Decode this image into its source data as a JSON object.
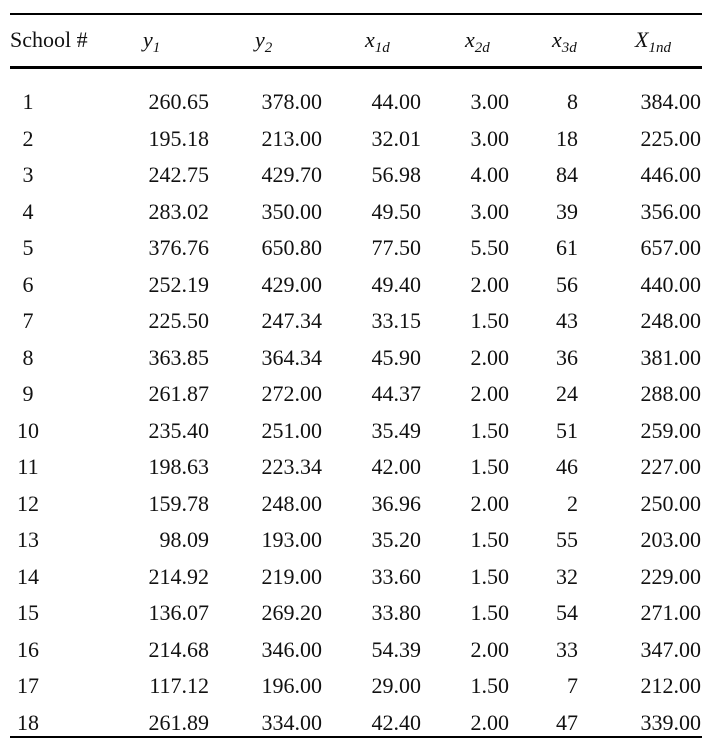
{
  "table": {
    "header": [
      {
        "main": "School #"
      },
      {
        "main": "y",
        "sub": "1"
      },
      {
        "main": "y",
        "sub": "2"
      },
      {
        "main": "x",
        "sub": "1d"
      },
      {
        "main": "x",
        "sub": "2d"
      },
      {
        "main": "x",
        "sub": "3d"
      },
      {
        "main": "X",
        "sub": "1nd"
      }
    ],
    "rows": [
      [
        "1",
        "260.65",
        "378.00",
        "44.00",
        "3.00",
        "8",
        "384.00"
      ],
      [
        "2",
        "195.18",
        "213.00",
        "32.01",
        "3.00",
        "18",
        "225.00"
      ],
      [
        "3",
        "242.75",
        "429.70",
        "56.98",
        "4.00",
        "84",
        "446.00"
      ],
      [
        "4",
        "283.02",
        "350.00",
        "49.50",
        "3.00",
        "39",
        "356.00"
      ],
      [
        "5",
        "376.76",
        "650.80",
        "77.50",
        "5.50",
        "61",
        "657.00"
      ],
      [
        "6",
        "252.19",
        "429.00",
        "49.40",
        "2.00",
        "56",
        "440.00"
      ],
      [
        "7",
        "225.50",
        "247.34",
        "33.15",
        "1.50",
        "43",
        "248.00"
      ],
      [
        "8",
        "363.85",
        "364.34",
        "45.90",
        "2.00",
        "36",
        "381.00"
      ],
      [
        "9",
        "261.87",
        "272.00",
        "44.37",
        "2.00",
        "24",
        "288.00"
      ],
      [
        "10",
        "235.40",
        "251.00",
        "35.49",
        "1.50",
        "51",
        "259.00"
      ],
      [
        "11",
        "198.63",
        "223.34",
        "42.00",
        "1.50",
        "46",
        "227.00"
      ],
      [
        "12",
        "159.78",
        "248.00",
        "36.96",
        "2.00",
        "2",
        "250.00"
      ],
      [
        "13",
        "98.09",
        "193.00",
        "35.20",
        "1.50",
        "55",
        "203.00"
      ],
      [
        "14",
        "214.92",
        "219.00",
        "33.60",
        "1.50",
        "32",
        "229.00"
      ],
      [
        "15",
        "136.07",
        "269.20",
        "33.80",
        "1.50",
        "54",
        "271.00"
      ],
      [
        "16",
        "214.68",
        "346.00",
        "54.39",
        "2.00",
        "33",
        "347.00"
      ],
      [
        "17",
        "117.12",
        "196.00",
        "29.00",
        "1.50",
        "7",
        "212.00"
      ],
      [
        "18",
        "261.89",
        "334.00",
        "42.40",
        "2.00",
        "47",
        "339.00"
      ]
    ]
  }
}
